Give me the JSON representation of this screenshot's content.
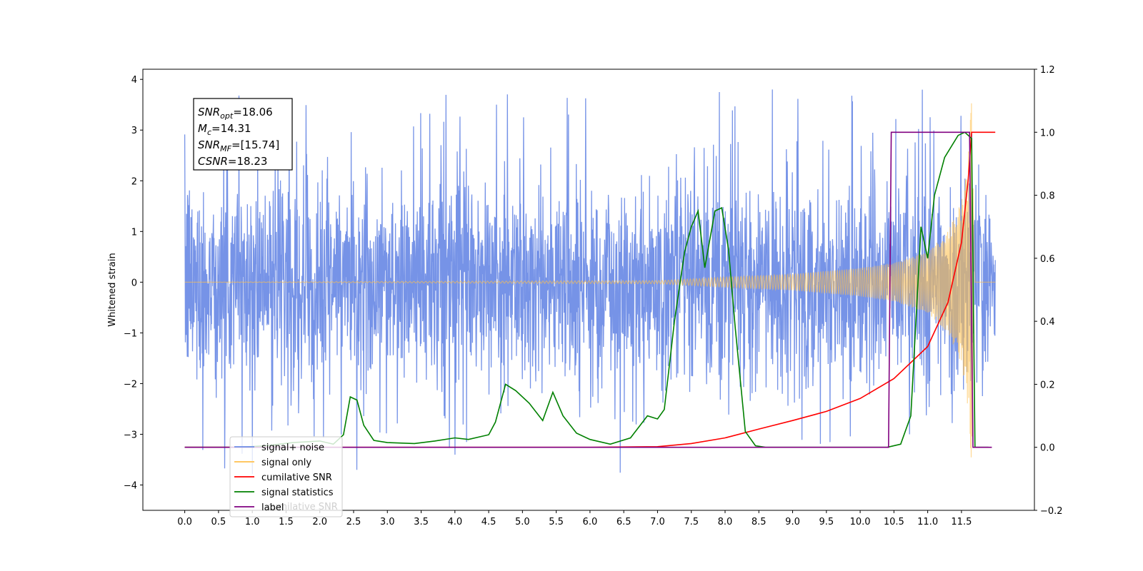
{
  "chart_data": {
    "type": "line",
    "y_left_label": "Whitened strain",
    "x_ticks": [
      "0.0",
      "0.5",
      "1.0",
      "1.5",
      "2.0",
      "2.5",
      "3.0",
      "3.5",
      "4.0",
      "4.5",
      "5.0",
      "5.5",
      "6.0",
      "6.5",
      "7.0",
      "7.5",
      "8.0",
      "8.5",
      "9.0",
      "9.5",
      "10.0",
      "10.5",
      "11.0",
      "11.5"
    ],
    "x_tick_values": [
      0,
      0.5,
      1,
      1.5,
      2,
      2.5,
      3,
      3.5,
      4,
      4.5,
      5,
      5.5,
      6,
      6.5,
      7,
      7.5,
      8,
      8.5,
      9,
      9.5,
      10,
      10.5,
      11,
      11.5
    ],
    "xlim": [
      -0.62,
      12.58
    ],
    "y_left_ticks": [
      "−4",
      "−3",
      "−2",
      "−1",
      "0",
      "1",
      "2",
      "3",
      "4"
    ],
    "y_left_tick_values": [
      -4,
      -3,
      -2,
      -1,
      0,
      1,
      2,
      3,
      4
    ],
    "y_left_lim": [
      -4.5,
      4.2
    ],
    "y_right_ticks": [
      "−0.2",
      "0.0",
      "0.2",
      "0.4",
      "0.6",
      "0.8",
      "1.0",
      "1.2"
    ],
    "y_right_tick_values": [
      -0.2,
      0,
      0.2,
      0.4,
      0.6,
      0.8,
      1.0,
      1.2
    ],
    "y_right_lim": [
      -0.2,
      1.2
    ],
    "annotation": {
      "lines": [
        {
          "main": "SNR",
          "sub": "opt",
          "rest": "=18.06"
        },
        {
          "main": "M",
          "sub": "c",
          "rest": "=14.31"
        },
        {
          "main": "SNR",
          "sub": "MF",
          "rest": "=[15.74]"
        },
        {
          "main": "CSNR",
          "sub": "",
          "rest": "=18.23"
        }
      ]
    },
    "legend": {
      "placement": "lower-left",
      "entries": [
        {
          "label": "signal+ noise",
          "color": "#6f8de6"
        },
        {
          "label": "signal only",
          "color": "#ffc04d"
        },
        {
          "label": "cumilative SNR",
          "color": "#ff0000"
        },
        {
          "label": "signal statistics",
          "color": "#008000"
        },
        {
          "label": "label",
          "color": "#800080"
        }
      ],
      "ghost_text": "cumilative SNR"
    },
    "series": [
      {
        "name": "signal+ noise",
        "axis": "left",
        "color": "#6f8de6",
        "description": "noisy whitened strain, roughly within -2.5..2.5 with spikes to about ±3.8",
        "x_range": [
          0,
          12.0
        ],
        "envelope": 2.4,
        "spike_max": 3.8
      },
      {
        "name": "signal only",
        "axis": "left",
        "color": "#ffc04d",
        "description": "chirp signal growing in amplitude, peak near x=11.6",
        "x_range": [
          0,
          12.0
        ],
        "amplitude_points": [
          [
            0,
            0.0
          ],
          [
            7.0,
            0.03
          ],
          [
            8.0,
            0.1
          ],
          [
            9.0,
            0.16
          ],
          [
            10.0,
            0.28
          ],
          [
            10.5,
            0.38
          ],
          [
            11.0,
            0.6
          ],
          [
            11.3,
            1.0
          ],
          [
            11.5,
            1.6
          ],
          [
            11.6,
            2.5
          ],
          [
            11.65,
            3.6
          ],
          [
            11.7,
            0.0
          ],
          [
            12.0,
            0.0
          ]
        ]
      },
      {
        "name": "cumilative SNR",
        "axis": "right",
        "color": "#ff0000",
        "points": [
          [
            0,
            0
          ],
          [
            6.0,
            0
          ],
          [
            7.0,
            0.002
          ],
          [
            7.5,
            0.012
          ],
          [
            8.0,
            0.03
          ],
          [
            8.5,
            0.058
          ],
          [
            9.0,
            0.085
          ],
          [
            9.5,
            0.114
          ],
          [
            10.0,
            0.155
          ],
          [
            10.5,
            0.218
          ],
          [
            11.0,
            0.32
          ],
          [
            11.3,
            0.46
          ],
          [
            11.5,
            0.65
          ],
          [
            11.6,
            0.85
          ],
          [
            11.65,
            1.0
          ],
          [
            12.0,
            1.0
          ]
        ]
      },
      {
        "name": "signal statistics",
        "axis": "right",
        "color": "#008000",
        "points": [
          [
            0,
            0
          ],
          [
            0.8,
            0
          ],
          [
            1.2,
            0.005
          ],
          [
            1.6,
            0.015
          ],
          [
            2.0,
            0.02
          ],
          [
            2.2,
            0.01
          ],
          [
            2.35,
            0.04
          ],
          [
            2.45,
            0.16
          ],
          [
            2.55,
            0.15
          ],
          [
            2.65,
            0.07
          ],
          [
            2.8,
            0.022
          ],
          [
            3.0,
            0.015
          ],
          [
            3.4,
            0.012
          ],
          [
            3.7,
            0.02
          ],
          [
            4.0,
            0.03
          ],
          [
            4.2,
            0.025
          ],
          [
            4.5,
            0.04
          ],
          [
            4.6,
            0.08
          ],
          [
            4.75,
            0.2
          ],
          [
            4.9,
            0.18
          ],
          [
            5.1,
            0.14
          ],
          [
            5.3,
            0.085
          ],
          [
            5.45,
            0.175
          ],
          [
            5.6,
            0.1
          ],
          [
            5.8,
            0.045
          ],
          [
            6.0,
            0.025
          ],
          [
            6.3,
            0.01
          ],
          [
            6.6,
            0.03
          ],
          [
            6.85,
            0.1
          ],
          [
            7.0,
            0.09
          ],
          [
            7.1,
            0.12
          ],
          [
            7.25,
            0.4
          ],
          [
            7.4,
            0.62
          ],
          [
            7.5,
            0.7
          ],
          [
            7.6,
            0.75
          ],
          [
            7.7,
            0.57
          ],
          [
            7.85,
            0.75
          ],
          [
            7.95,
            0.76
          ],
          [
            8.05,
            0.63
          ],
          [
            8.15,
            0.38
          ],
          [
            8.3,
            0.05
          ],
          [
            8.45,
            0.005
          ],
          [
            8.6,
            0
          ],
          [
            10.4,
            0
          ],
          [
            10.6,
            0.01
          ],
          [
            10.75,
            0.1
          ],
          [
            10.9,
            0.7
          ],
          [
            11.0,
            0.6
          ],
          [
            11.1,
            0.8
          ],
          [
            11.25,
            0.92
          ],
          [
            11.45,
            0.99
          ],
          [
            11.55,
            1.0
          ],
          [
            11.65,
            0.98
          ],
          [
            11.7,
            0.0
          ],
          [
            11.9,
            0.0
          ]
        ]
      },
      {
        "name": "label",
        "axis": "right",
        "color": "#800080",
        "points": [
          [
            0,
            0
          ],
          [
            10.42,
            0
          ],
          [
            10.46,
            1.0
          ],
          [
            11.62,
            1.0
          ],
          [
            11.67,
            0.0
          ],
          [
            11.95,
            0.0
          ]
        ]
      }
    ]
  }
}
